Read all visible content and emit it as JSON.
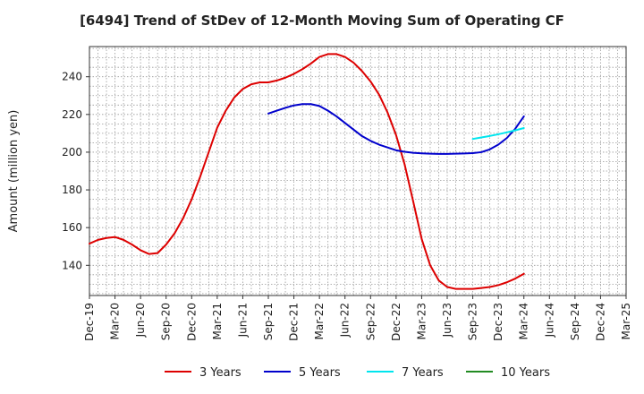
{
  "chart_data": {
    "type": "line",
    "title": "[6494]  Trend of StDev of 12-Month Moving Sum of Operating CF",
    "xlabel": "",
    "ylabel": "Amount (million yen)",
    "x_ticks": [
      "Dec-19",
      "Mar-20",
      "Jun-20",
      "Sep-20",
      "Dec-20",
      "Mar-21",
      "Jun-21",
      "Sep-21",
      "Dec-21",
      "Mar-22",
      "Jun-22",
      "Sep-22",
      "Dec-22",
      "Mar-23",
      "Jun-23",
      "Sep-23",
      "Dec-23",
      "Mar-24",
      "Jun-24",
      "Sep-24",
      "Dec-24",
      "Mar-25"
    ],
    "y_ticks": [
      140,
      160,
      180,
      200,
      220,
      240
    ],
    "ylim": [
      124,
      256
    ],
    "grid": true,
    "legend_position": "bottom",
    "series": [
      {
        "name": "3 Years",
        "color": "#dd0000",
        "points": [
          [
            "Dec-19",
            151.5
          ],
          [
            "Jan-20",
            153.5
          ],
          [
            "Feb-20",
            154.5
          ],
          [
            "Mar-20",
            155
          ],
          [
            "Apr-20",
            153.5
          ],
          [
            "May-20",
            151
          ],
          [
            "Jun-20",
            148
          ],
          [
            "Jul-20",
            146
          ],
          [
            "Aug-20",
            146.5
          ],
          [
            "Sep-20",
            151
          ],
          [
            "Oct-20",
            157
          ],
          [
            "Nov-20",
            165
          ],
          [
            "Dec-20",
            175
          ],
          [
            "Jan-21",
            187
          ],
          [
            "Feb-21",
            200
          ],
          [
            "Mar-21",
            213
          ],
          [
            "Apr-21",
            222
          ],
          [
            "May-21",
            229
          ],
          [
            "Jun-21",
            233.5
          ],
          [
            "Jul-21",
            236
          ],
          [
            "Aug-21",
            237
          ],
          [
            "Sep-21",
            237
          ],
          [
            "Oct-21",
            238
          ],
          [
            "Nov-21",
            239.5
          ],
          [
            "Dec-21",
            241.5
          ],
          [
            "Jan-22",
            244
          ],
          [
            "Feb-22",
            247
          ],
          [
            "Mar-22",
            250.5
          ],
          [
            "Apr-22",
            252
          ],
          [
            "May-22",
            252
          ],
          [
            "Jun-22",
            250.5
          ],
          [
            "Jul-22",
            247.5
          ],
          [
            "Aug-22",
            243
          ],
          [
            "Sep-22",
            237.5
          ],
          [
            "Oct-22",
            230.5
          ],
          [
            "Nov-22",
            221
          ],
          [
            "Dec-22",
            209
          ],
          [
            "Jan-23",
            193.5
          ],
          [
            "Feb-23",
            174
          ],
          [
            "Mar-23",
            154
          ],
          [
            "Apr-23",
            140
          ],
          [
            "May-23",
            132
          ],
          [
            "Jun-23",
            128.5
          ],
          [
            "Jul-23",
            127.5
          ],
          [
            "Aug-23",
            127.5
          ],
          [
            "Sep-23",
            127.5
          ],
          [
            "Oct-23",
            128
          ],
          [
            "Nov-23",
            128.5
          ],
          [
            "Dec-23",
            129.5
          ],
          [
            "Jan-24",
            131
          ],
          [
            "Feb-24",
            133
          ],
          [
            "Mar-24",
            135.5
          ]
        ]
      },
      {
        "name": "5 Years",
        "color": "#0000cc",
        "points": [
          [
            "Sep-21",
            220.5
          ],
          [
            "Oct-21",
            222
          ],
          [
            "Nov-21",
            223.5
          ],
          [
            "Dec-21",
            224.8
          ],
          [
            "Jan-22",
            225.5
          ],
          [
            "Feb-22",
            225.5
          ],
          [
            "Mar-22",
            224.5
          ],
          [
            "Apr-22",
            222
          ],
          [
            "May-22",
            219
          ],
          [
            "Jun-22",
            215.5
          ],
          [
            "Jul-22",
            212
          ],
          [
            "Aug-22",
            208.5
          ],
          [
            "Sep-22",
            206
          ],
          [
            "Oct-22",
            204
          ],
          [
            "Nov-22",
            202.5
          ],
          [
            "Dec-22",
            201
          ],
          [
            "Jan-23",
            200.2
          ],
          [
            "Feb-23",
            199.7
          ],
          [
            "Mar-23",
            199.4
          ],
          [
            "Apr-23",
            199.2
          ],
          [
            "May-23",
            199.1
          ],
          [
            "Jun-23",
            199.1
          ],
          [
            "Jul-23",
            199.2
          ],
          [
            "Aug-23",
            199.3
          ],
          [
            "Sep-23",
            199.5
          ],
          [
            "Oct-23",
            200
          ],
          [
            "Nov-23",
            201.5
          ],
          [
            "Dec-23",
            204
          ],
          [
            "Jan-24",
            207.5
          ],
          [
            "Feb-24",
            212.5
          ],
          [
            "Mar-24",
            219
          ]
        ]
      },
      {
        "name": "7 Years",
        "color": "#00e5ee",
        "points": [
          [
            "Sep-23",
            207
          ],
          [
            "Oct-23",
            207.8
          ],
          [
            "Nov-23",
            208.6
          ],
          [
            "Dec-23",
            209.5
          ],
          [
            "Jan-24",
            210.5
          ],
          [
            "Feb-24",
            211.6
          ],
          [
            "Mar-24",
            212.8
          ]
        ]
      },
      {
        "name": "10 Years",
        "color": "#228b22",
        "points": []
      }
    ]
  }
}
